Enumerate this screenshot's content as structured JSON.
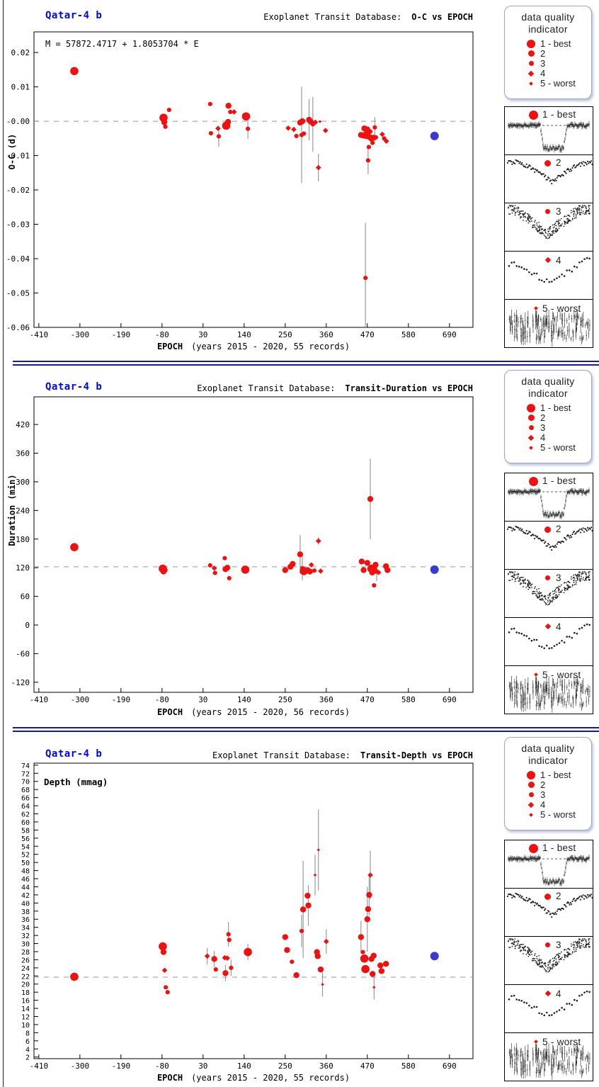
{
  "page": {
    "background": "#ffffff"
  },
  "colors": {
    "red": "#ee1111",
    "blue": "#3b3bcb",
    "planet_title_blue": "#0008dd",
    "dashed_line": "#999999",
    "error_bar": "#9a9a9a",
    "separator": "#1b1b8e",
    "scatter_black": "#222222"
  },
  "quality_legend": {
    "title_line1": "data quality",
    "title_line2": "indicator",
    "items": [
      {
        "quality": 1,
        "label": "1 - best"
      },
      {
        "quality": 2,
        "label": "2"
      },
      {
        "quality": 3,
        "label": "3"
      },
      {
        "quality": 4,
        "label": "4"
      },
      {
        "quality": 5,
        "label": "5 - worst"
      }
    ]
  },
  "thumbnails": [
    {
      "quality": 1,
      "label": "1 - best",
      "pattern": "deep-transit"
    },
    {
      "quality": 2,
      "label": "2",
      "pattern": "v-scatter"
    },
    {
      "quality": 3,
      "label": "3",
      "pattern": "dense-noise"
    },
    {
      "quality": 4,
      "label": "4",
      "pattern": "sparse-scatter"
    },
    {
      "quality": 5,
      "label": "5 - worst",
      "pattern": "noisy-errorbars"
    }
  ],
  "chart_data": [
    {
      "type": "scatter",
      "planet": "Qatar-4 b",
      "db_label": "Exoplanet Transit Database:",
      "title": "O-C vs EPOCH",
      "ephemeris": "M = 57872.4717 + 1.8053704 * E",
      "xlabel": "EPOCH",
      "xnote": "(years 2015 - 2020, 55 records)",
      "records": 55,
      "ylabel": "O-C (d)",
      "xlim": [
        -423,
        753
      ],
      "ylim": [
        -0.06,
        0.026
      ],
      "xticks": [
        -410,
        -300,
        -190,
        -80,
        30,
        140,
        250,
        360,
        470,
        580,
        690
      ],
      "yticks": [
        {
          "v": 0.02,
          "label": "0.02"
        },
        {
          "v": 0.01,
          "label": "0.01"
        },
        {
          "v": 0,
          "label": "-0.00"
        },
        {
          "v": -0.01,
          "label": "-0.01"
        },
        {
          "v": -0.02,
          "label": "-0.02"
        },
        {
          "v": -0.03,
          "label": "-0.03"
        },
        {
          "v": -0.04,
          "label": "-0.04"
        },
        {
          "v": -0.05,
          "label": "-0.05"
        },
        {
          "v": -0.06,
          "label": "-0.06"
        }
      ],
      "dashed_line_y": 0.0,
      "point_format": "[epoch, value, quality, err]",
      "series": [
        {
          "name": "transit-observations",
          "color": "#ee1111",
          "points": [
            [
              -315,
              0.0146,
              1
            ],
            [
              -61,
              0.0033,
              3
            ],
            [
              -76,
              0.001,
              1
            ],
            [
              -74,
              -0.0003,
              2
            ],
            [
              -71,
              -0.0016,
              3
            ],
            [
              49,
              0.005,
              3
            ],
            [
              51,
              -0.0035,
              3
            ],
            [
              70,
              -0.0021,
              4
            ],
            [
              72,
              -0.0044,
              3,
              0.003
            ],
            [
              92,
              -0.0013,
              1
            ],
            [
              97,
              -0.0002,
              2
            ],
            [
              98,
              0.0045,
              2
            ],
            [
              103,
              0.0027,
              3
            ],
            [
              113,
              0.0027,
              4
            ],
            [
              145,
              0.0014,
              1
            ],
            [
              150,
              -0.0022,
              3,
              0.003
            ],
            [
              258,
              -0.002,
              4
            ],
            [
              273,
              -0.0024,
              4
            ],
            [
              280,
              -0.0043,
              3
            ],
            [
              290,
              -0.0004,
              2
            ],
            [
              294,
              -0.004,
              3,
              0.014
            ],
            [
              296,
              0.0,
              2
            ],
            [
              300,
              -0.0036,
              3
            ],
            [
              314,
              0.0004,
              2,
              0.006
            ],
            [
              318,
              -0.0001,
              2
            ],
            [
              324,
              -0.0009,
              3,
              0.008
            ],
            [
              331,
              -0.0003,
              4
            ],
            [
              339,
              -0.0135,
              4,
              0.004
            ],
            [
              343,
              -0.0001,
              5
            ],
            [
              358,
              -0.0027,
              4
            ],
            [
              453,
              -0.004,
              2
            ],
            [
              459,
              -0.0044,
              3
            ],
            [
              462,
              -0.0021,
              2
            ],
            [
              465,
              -0.0456,
              3,
              0.016
            ],
            [
              468,
              -0.004,
              1
            ],
            [
              470,
              -0.0024,
              2
            ],
            [
              472,
              -0.0114,
              3,
              0.004
            ],
            [
              474,
              -0.0075,
              3
            ],
            [
              476,
              -0.0046,
              2
            ],
            [
              478,
              -0.003,
              3
            ],
            [
              481,
              -0.0051,
              2
            ],
            [
              484,
              -0.0063,
              3
            ],
            [
              487,
              -0.0048,
              2
            ],
            [
              490,
              -0.0018,
              3,
              0.003
            ],
            [
              493,
              -0.0047,
              3
            ],
            [
              510,
              -0.0038,
              4
            ],
            [
              515,
              -0.005,
              3
            ],
            [
              521,
              -0.0058,
              4
            ]
          ]
        },
        {
          "name": "prediction",
          "color": "#3b3bcb",
          "points": [
            [
              650,
              -0.0043,
              1
            ]
          ]
        }
      ]
    },
    {
      "type": "scatter",
      "planet": "Qatar-4 b",
      "db_label": "Exoplanet Transit Database:",
      "title": "Transit-Duration vs EPOCH",
      "xlabel": "EPOCH",
      "xnote": "(years 2015 - 2020, 56 records)",
      "records": 56,
      "ylabel": "Duration (min)",
      "xlim": [
        -423,
        753
      ],
      "ylim": [
        -141,
        478
      ],
      "xticks": [
        -410,
        -300,
        -190,
        -80,
        30,
        140,
        250,
        360,
        470,
        580,
        690
      ],
      "yticks": [
        420,
        360,
        300,
        240,
        180,
        120,
        60,
        0,
        -60,
        -120
      ],
      "dashed_line_y": 122,
      "point_format": "[epoch, value, quality, err]",
      "series": [
        {
          "name": "transit-observations",
          "color": "#ee1111",
          "points": [
            [
              -315,
              163,
              1
            ],
            [
              -78,
              118,
              1
            ],
            [
              -76,
              112,
              2
            ],
            [
              -73,
              115,
              2
            ],
            [
              49,
              125,
              3
            ],
            [
              60,
              119,
              4
            ],
            [
              62,
              109,
              3
            ],
            [
              88,
              140,
              3
            ],
            [
              90,
              117,
              2
            ],
            [
              95,
              120,
              2
            ],
            [
              100,
              98,
              3
            ],
            [
              143,
              116,
              1
            ],
            [
              250,
              115,
              2
            ],
            [
              264,
              122,
              2
            ],
            [
              270,
              128,
              2
            ],
            [
              290,
              148,
              2,
              40
            ],
            [
              296,
              119,
              3,
              25
            ],
            [
              300,
              113,
              1
            ],
            [
              310,
              115,
              2
            ],
            [
              316,
              112,
              2
            ],
            [
              320,
              126,
              4
            ],
            [
              328,
              114,
              3
            ],
            [
              339,
              176,
              4,
              8
            ],
            [
              345,
              113,
              4
            ],
            [
              455,
              133,
              2
            ],
            [
              460,
              115,
              2
            ],
            [
              470,
              130,
              2
            ],
            [
              478,
              264,
              2,
              84
            ],
            [
              481,
              118,
              1
            ],
            [
              483,
              110,
              2
            ],
            [
              486,
              115,
              1
            ],
            [
              488,
              83,
              3
            ],
            [
              492,
              126,
              2
            ],
            [
              495,
              112,
              3,
              20
            ],
            [
              500,
              110,
              4
            ],
            [
              520,
              123,
              2
            ],
            [
              524,
              115,
              2
            ]
          ]
        },
        {
          "name": "prediction",
          "color": "#3b3bcb",
          "points": [
            [
              650,
              116,
              1
            ]
          ]
        }
      ]
    },
    {
      "type": "scatter",
      "planet": "Qatar-4 b",
      "db_label": "Exoplanet Transit Database:",
      "title": "Transit-Depth vs EPOCH",
      "xlabel": "EPOCH",
      "xnote": "(years 2015 - 2020, 55 records)",
      "records": 55,
      "ylabel": "Depth (mmag)",
      "ylabel_inside": true,
      "xlim": [
        -423,
        753
      ],
      "ylim": [
        1.6,
        74.5
      ],
      "xticks": [
        -410,
        -300,
        -190,
        -80,
        30,
        140,
        250,
        360,
        470,
        580,
        690
      ],
      "yticks": [
        74,
        72,
        70,
        68,
        66,
        64,
        62,
        60,
        58,
        56,
        54,
        52,
        50,
        48,
        46,
        44,
        42,
        40,
        38,
        36,
        34,
        32,
        30,
        28,
        26,
        24,
        22,
        20,
        18,
        16,
        14,
        12,
        10,
        8,
        6,
        4,
        2
      ],
      "dashed_line_y": 21.7,
      "point_format": "[epoch, value, quality, err]",
      "series": [
        {
          "name": "transit-observations",
          "color": "#ee1111",
          "points": [
            [
              -315,
              21.8,
              1
            ],
            [
              -78,
              29.3,
              1
            ],
            [
              -76,
              27.9,
              2
            ],
            [
              -73,
              23.4,
              4
            ],
            [
              -70,
              19.2,
              3
            ],
            [
              -65,
              18.0,
              3
            ],
            [
              41,
              26.9,
              4,
              2
            ],
            [
              60,
              26.2,
              2,
              2
            ],
            [
              64,
              23.6,
              3
            ],
            [
              88,
              26.5,
              4
            ],
            [
              90,
              22.7,
              2,
              2
            ],
            [
              95,
              26.4,
              4
            ],
            [
              98,
              32.3,
              3,
              3
            ],
            [
              100,
              30.9,
              3
            ],
            [
              105,
              24.0,
              3,
              2
            ],
            [
              150,
              27.9,
              1,
              2
            ],
            [
              250,
              31.6,
              2
            ],
            [
              255,
              28.4,
              2
            ],
            [
              268,
              25.5,
              3
            ],
            [
              280,
              22.2,
              2
            ],
            [
              294,
              33.1,
              3,
              4
            ],
            [
              298,
              38.4,
              2,
              12
            ],
            [
              310,
              41.8,
              2
            ],
            [
              312,
              39.4,
              2,
              5
            ],
            [
              330,
              46.9,
              5,
              5
            ],
            [
              335,
              27.9,
              2
            ],
            [
              337,
              26.9,
              2
            ],
            [
              339,
              53.1,
              5,
              10
            ],
            [
              345,
              23.6,
              2
            ],
            [
              350,
              19.9,
              5,
              3
            ],
            [
              360,
              30.5,
              4,
              3
            ],
            [
              453,
              31.6,
              2,
              4
            ],
            [
              458,
              27.9,
              3
            ],
            [
              462,
              26.3,
              1
            ],
            [
              465,
              23.7,
              1
            ],
            [
              470,
              36.0,
              2,
              8
            ],
            [
              472,
              38.5,
              2
            ],
            [
              475,
              42.0,
              2,
              5
            ],
            [
              478,
              46.9,
              4,
              6
            ],
            [
              481,
              26.2,
              2
            ],
            [
              484,
              22.5,
              2
            ],
            [
              487,
              27.0,
              2
            ],
            [
              488,
              19.2,
              5,
              3
            ],
            [
              505,
              24.6,
              2
            ],
            [
              508,
              23.2,
              2
            ],
            [
              520,
              25.0,
              2
            ]
          ]
        },
        {
          "name": "prediction",
          "color": "#3b3bcb",
          "points": [
            [
              650,
              26.9,
              1
            ]
          ]
        }
      ]
    }
  ]
}
